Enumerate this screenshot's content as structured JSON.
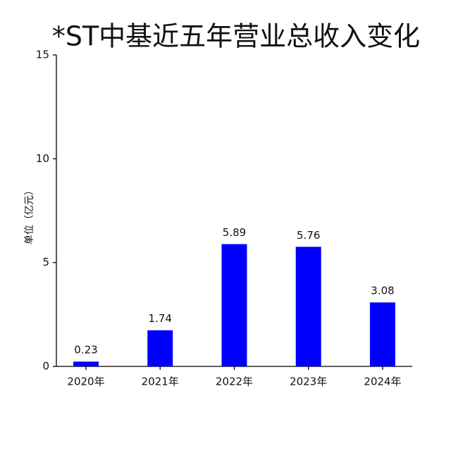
{
  "chart_data": {
    "type": "bar",
    "title": "*ST中基近五年营业总收入变化",
    "y_label": "单位（亿元）",
    "categories": [
      "2020年",
      "2021年",
      "2022年",
      "2023年",
      "2024年"
    ],
    "values": [
      0.23,
      1.74,
      5.89,
      5.76,
      3.08
    ],
    "color": "#0000ff",
    "ylim": [
      0,
      15
    ],
    "yticks": [
      0,
      5,
      10,
      15
    ],
    "grid": false
  }
}
